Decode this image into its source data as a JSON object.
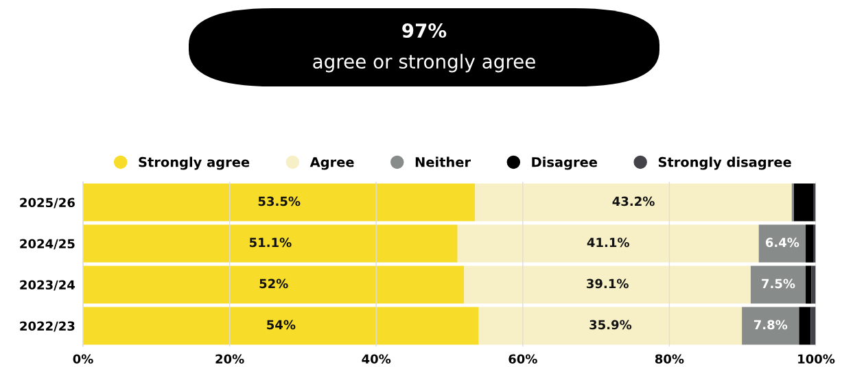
{
  "chart_data": {
    "type": "bar",
    "orientation": "horizontal",
    "stacked": true,
    "title": "97%",
    "subtitle": "agree or strongly agree",
    "categories": [
      "2025/26",
      "2024/25",
      "2023/24",
      "2022/23"
    ],
    "series": [
      {
        "name": "Strongly agree",
        "color": "#f7dd2a",
        "values": [
          53.5,
          51.1,
          52,
          54
        ],
        "value_labels": [
          "53.5%",
          "51.1%",
          "52%",
          "54%"
        ]
      },
      {
        "name": "Agree",
        "color": "#f7f0c6",
        "values": [
          43.2,
          41.1,
          39.1,
          35.9
        ],
        "value_labels": [
          "43.2%",
          "41.1%",
          "39.1%",
          "35.9%"
        ]
      },
      {
        "name": "Neither",
        "color": "#878b8a",
        "values": [
          0.3,
          6.4,
          7.5,
          7.8
        ],
        "value_labels": [
          null,
          "6.4%",
          "7.5%",
          "7.8%"
        ]
      },
      {
        "name": "Disagree",
        "color": "#000000",
        "values": [
          2.7,
          1.1,
          0.8,
          1.6
        ]
      },
      {
        "name": "Strongly disagree",
        "color": "#45434a",
        "values": [
          0.3,
          0.3,
          0.6,
          0.7
        ]
      }
    ],
    "xlim": [
      0,
      100
    ],
    "xticks": [
      {
        "value": 0,
        "label": "0%"
      },
      {
        "value": 20,
        "label": "20%"
      },
      {
        "value": 40,
        "label": "40%"
      },
      {
        "value": 60,
        "label": "60%"
      },
      {
        "value": 80,
        "label": "80%"
      },
      {
        "value": 100,
        "label": "100%"
      }
    ],
    "grid": "x",
    "legend": "top"
  }
}
